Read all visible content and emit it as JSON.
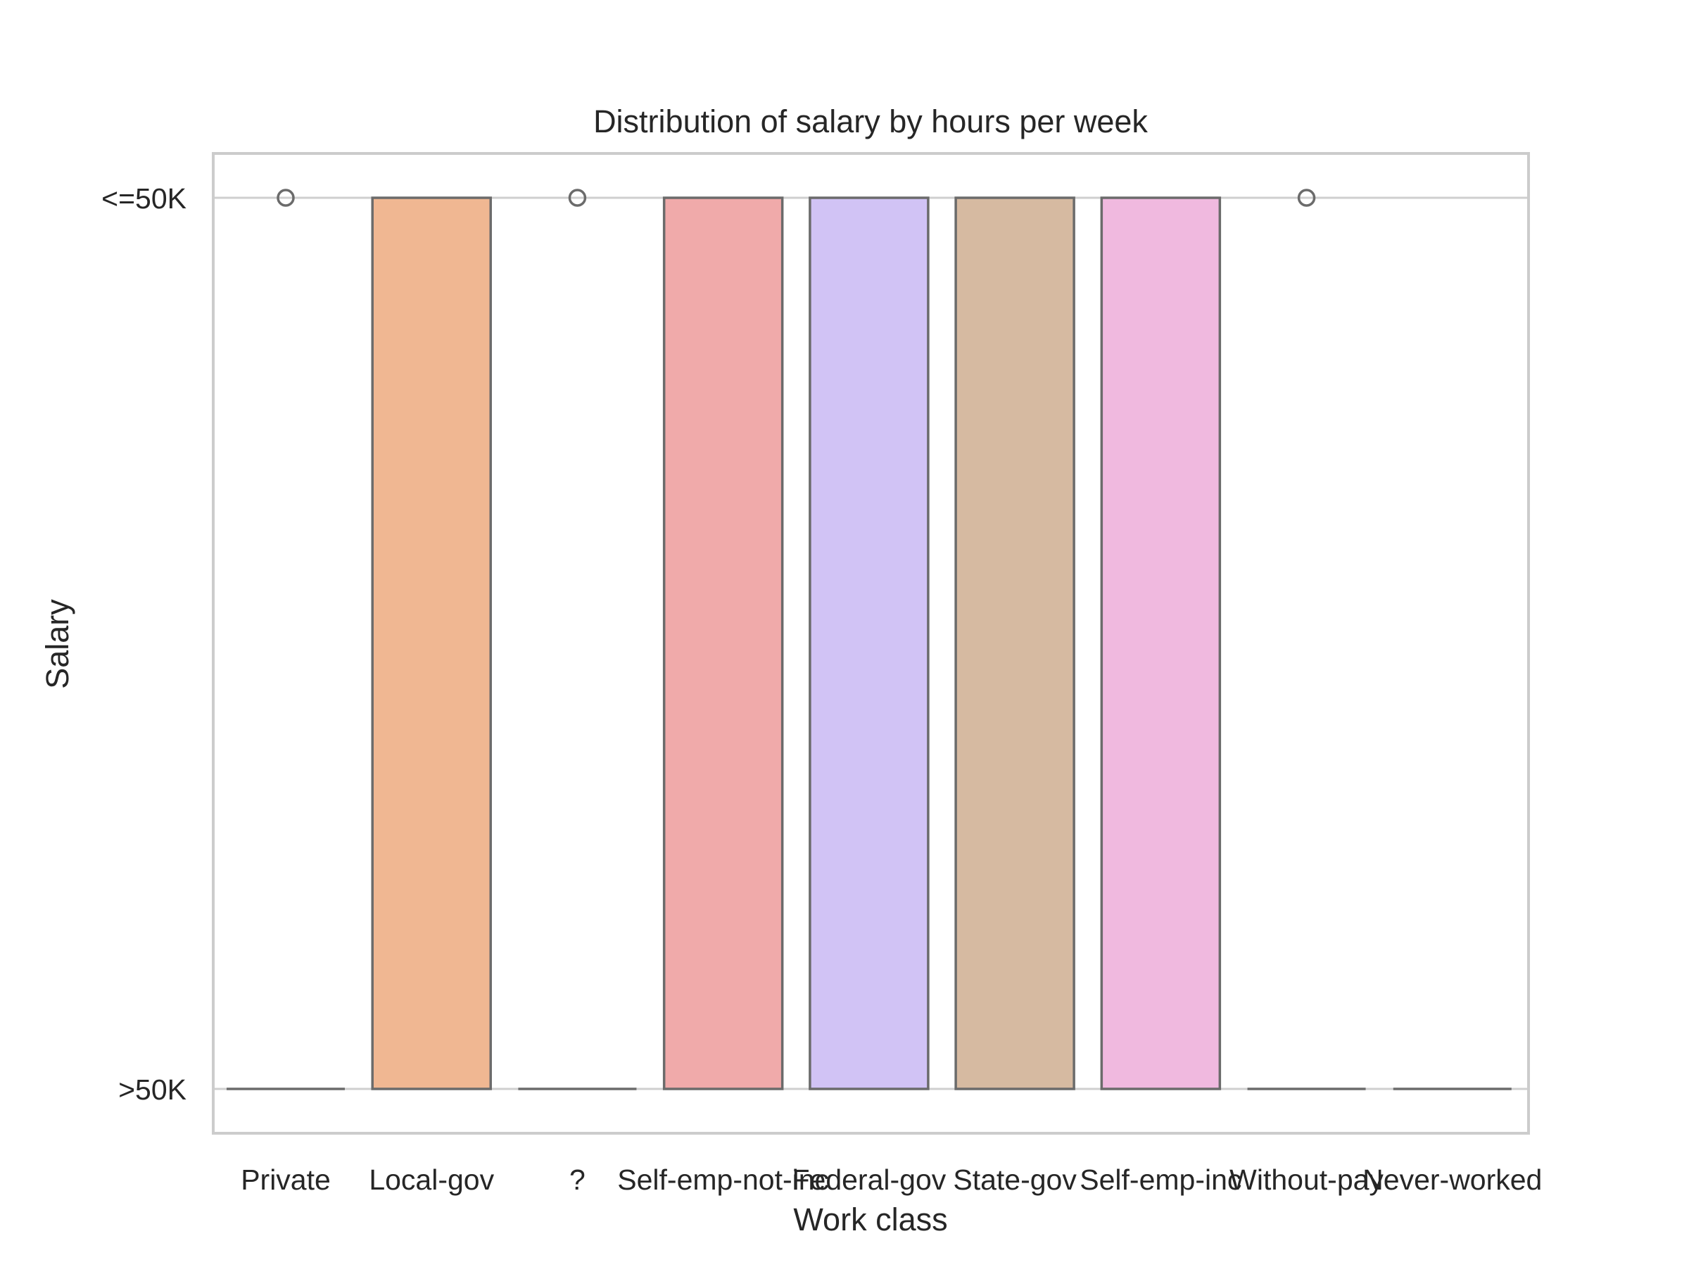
{
  "chart_data": {
    "type": "box",
    "title": "Distribution of salary by hours per week",
    "xlabel": "Work class",
    "ylabel": "Salary",
    "y_categories": [
      ">50K",
      "<=50K"
    ],
    "categories": [
      "Private",
      "Local-gov",
      "?",
      "Self-emp-not-inc",
      "Federal-gov",
      "State-gov",
      "Self-emp-inc",
      "Without-pay",
      "Never-worked"
    ],
    "boxes": [
      {
        "category": "Private",
        "q1": 0,
        "median": 0,
        "q3": 0,
        "whisker_low": 0,
        "whisker_high": 0,
        "outliers": [
          1
        ],
        "color": null
      },
      {
        "category": "Local-gov",
        "q1": 0,
        "median": 0,
        "q3": 1,
        "whisker_low": 0,
        "whisker_high": 1,
        "outliers": [],
        "color": "#f0b792"
      },
      {
        "category": "?",
        "q1": 0,
        "median": 0,
        "q3": 0,
        "whisker_low": 0,
        "whisker_high": 0,
        "outliers": [
          1
        ],
        "color": null
      },
      {
        "category": "Self-emp-not-inc",
        "q1": 0,
        "median": 0,
        "q3": 1,
        "whisker_low": 0,
        "whisker_high": 1,
        "outliers": [],
        "color": "#f0aaaa"
      },
      {
        "category": "Federal-gov",
        "q1": 0,
        "median": 0,
        "q3": 1,
        "whisker_low": 0,
        "whisker_high": 1,
        "outliers": [],
        "color": "#d1c3f5"
      },
      {
        "category": "State-gov",
        "q1": 0,
        "median": 0,
        "q3": 1,
        "whisker_low": 0,
        "whisker_high": 1,
        "outliers": [],
        "color": "#d6baa1"
      },
      {
        "category": "Self-emp-inc",
        "q1": 0,
        "median": 0,
        "q3": 1,
        "whisker_low": 0,
        "whisker_high": 1,
        "outliers": [],
        "color": "#f0b9df"
      },
      {
        "category": "Without-pay",
        "q1": 0,
        "median": 0,
        "q3": 0,
        "whisker_low": 0,
        "whisker_high": 0,
        "outliers": [
          1
        ],
        "color": null
      },
      {
        "category": "Never-worked",
        "q1": 0,
        "median": 0,
        "q3": 0,
        "whisker_low": 0,
        "whisker_high": 0,
        "outliers": [],
        "color": null
      }
    ],
    "grid": true,
    "legend": "none"
  },
  "colors": {
    "box_edge": "#6b6b6b",
    "grid": "#cfcfcf",
    "frame": "#cccccc",
    "text": "#262626"
  }
}
